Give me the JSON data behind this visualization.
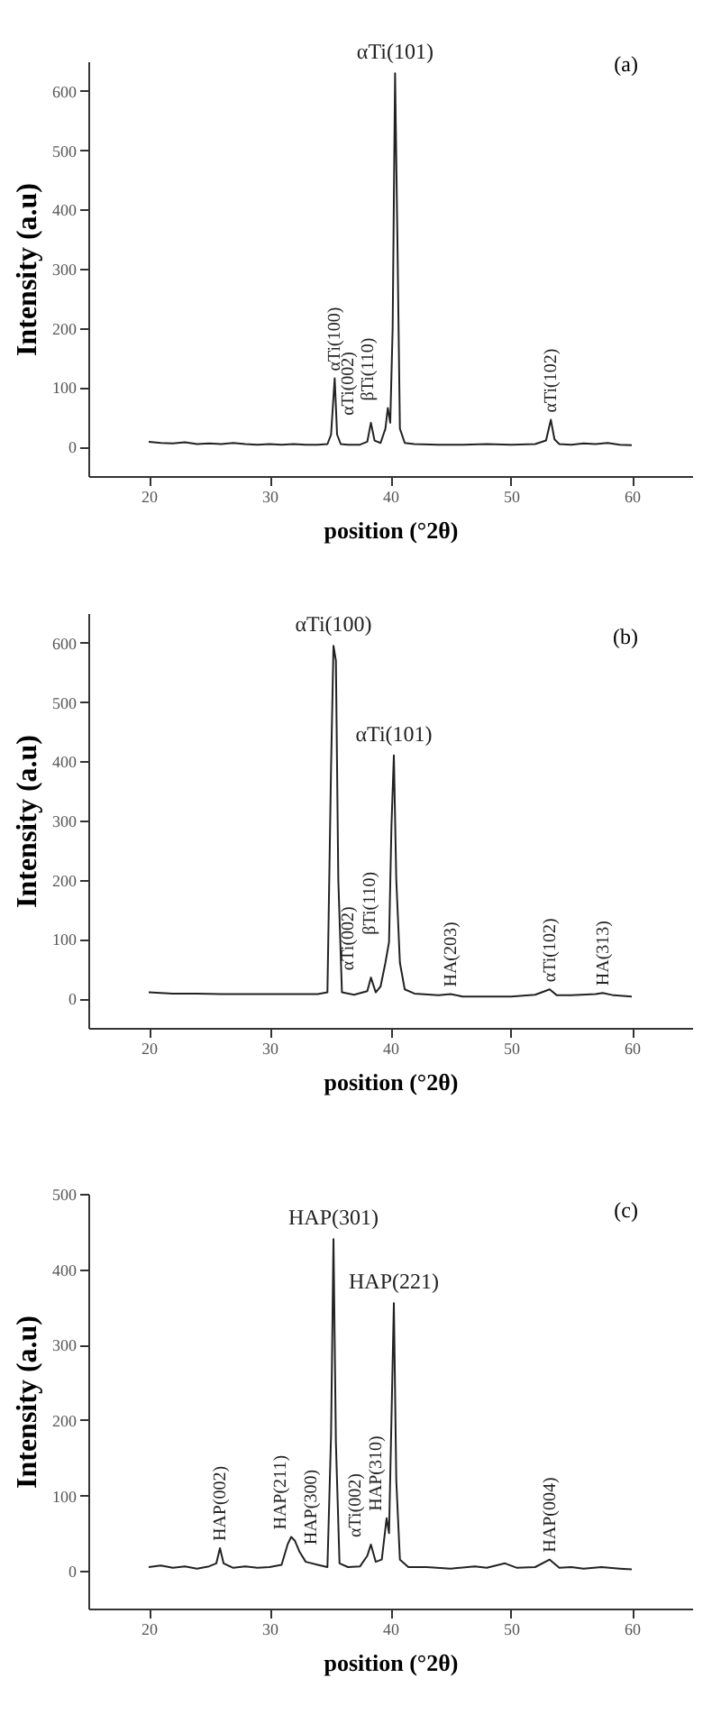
{
  "chart_data": [
    {
      "type": "line",
      "title": "(a)",
      "xlabel": "position (°2θ)",
      "ylabel": "Intensity (a.u)",
      "xlim": [
        15,
        65
      ],
      "ylim": [
        -50,
        650
      ],
      "xticks": [
        20,
        30,
        40,
        50,
        60
      ],
      "yticks": [
        0,
        100,
        200,
        300,
        400,
        500,
        600
      ],
      "x": [
        20,
        21,
        22,
        23,
        24,
        25,
        26,
        27,
        28,
        29,
        30,
        31,
        32,
        33,
        34,
        34.8,
        35.1,
        35.4,
        35.6,
        35.9,
        36.5,
        37.5,
        38.1,
        38.4,
        38.7,
        39.2,
        39.6,
        39.8,
        40.0,
        40.2,
        40.4,
        40.6,
        40.8,
        41.2,
        42,
        44,
        46,
        48,
        50,
        52,
        52.9,
        53.3,
        53.6,
        54,
        55,
        56,
        57,
        58,
        59,
        60
      ],
      "series": [
        {
          "color": "#222222",
          "values": [
            8,
            6,
            5,
            7,
            4,
            5,
            4,
            6,
            4,
            3,
            4,
            3,
            4,
            3,
            3,
            4,
            20,
            115,
            20,
            4,
            3,
            3,
            8,
            40,
            10,
            6,
            30,
            65,
            40,
            200,
            630,
            340,
            30,
            6,
            4,
            3,
            3,
            4,
            3,
            4,
            10,
            45,
            12,
            4,
            3,
            5,
            4,
            6,
            3,
            2
          ]
        }
      ],
      "annotations": [
        {
          "text": "αTi(101)",
          "x": 40.4,
          "y": 630
        },
        {
          "text": "αTi(100)",
          "x": 35.4,
          "y": 115
        },
        {
          "text": "αTi(002)",
          "x": 38.4,
          "y": 40
        },
        {
          "text": "βTi(110)",
          "x": 39.8,
          "y": 65
        },
        {
          "text": "αTi(102)",
          "x": 53.3,
          "y": 45
        }
      ]
    },
    {
      "type": "line",
      "title": "(b)",
      "xlabel": "position (°2θ)",
      "ylabel": "Intensity (a.u)",
      "xlim": [
        15,
        65
      ],
      "ylim": [
        -50,
        650
      ],
      "xticks": [
        20,
        30,
        40,
        50,
        60
      ],
      "yticks": [
        0,
        100,
        200,
        300,
        400,
        500,
        600
      ],
      "x": [
        20,
        22,
        24,
        26,
        28,
        30,
        32,
        34,
        34.8,
        35.1,
        35.3,
        35.5,
        35.7,
        36,
        37,
        38.1,
        38.4,
        38.8,
        39.2,
        39.6,
        39.9,
        40.1,
        40.3,
        40.5,
        40.8,
        41.2,
        42,
        44,
        45,
        46,
        48,
        50,
        52,
        53.2,
        53.8,
        55,
        57,
        57.6,
        58.5,
        60
      ],
      "series": [
        {
          "color": "#222222",
          "values": [
            10,
            8,
            8,
            7,
            7,
            7,
            7,
            7,
            10,
            390,
            595,
            570,
            200,
            10,
            6,
            12,
            35,
            10,
            20,
            60,
            95,
            290,
            410,
            200,
            60,
            15,
            8,
            5,
            7,
            3,
            3,
            3,
            6,
            15,
            5,
            5,
            7,
            9,
            5,
            3
          ]
        }
      ],
      "annotations": [
        {
          "text": "αTi(100)",
          "x": 35.3,
          "y": 595
        },
        {
          "text": "αTi(101)",
          "x": 40.3,
          "y": 410
        },
        {
          "text": "αTi(002)",
          "x": 38.4,
          "y": 35
        },
        {
          "text": "βTi(110)",
          "x": 39.9,
          "y": 95
        },
        {
          "text": "HA(203)",
          "x": 45,
          "y": 7
        },
        {
          "text": "αTi(102)",
          "x": 53.2,
          "y": 15
        },
        {
          "text": "HA(313)",
          "x": 57.6,
          "y": 9
        }
      ]
    },
    {
      "type": "line",
      "title": "(c)",
      "xlabel": "position (°2θ)",
      "ylabel": "Intensity (a.u)",
      "xlim": [
        15,
        65
      ],
      "ylim": [
        -50,
        500
      ],
      "xticks": [
        20,
        30,
        40,
        50,
        60
      ],
      "yticks": [
        0,
        100,
        200,
        300,
        400,
        500
      ],
      "x": [
        20,
        21,
        22,
        23,
        24,
        25,
        25.6,
        25.9,
        26.2,
        27,
        28,
        29,
        30,
        31,
        31.5,
        31.8,
        32.1,
        32.5,
        33,
        34,
        34.8,
        35.1,
        35.3,
        35.5,
        35.8,
        36.5,
        37.5,
        38.1,
        38.4,
        38.8,
        39.3,
        39.7,
        39.9,
        40.1,
        40.3,
        40.5,
        40.8,
        41.5,
        43,
        45,
        47,
        48,
        49.5,
        50.5,
        52,
        53.2,
        54,
        55,
        56,
        57.5,
        59,
        60
      ],
      "series": [
        {
          "color": "#222222",
          "values": [
            5,
            7,
            4,
            6,
            3,
            6,
            10,
            30,
            10,
            4,
            6,
            4,
            5,
            8,
            35,
            45,
            40,
            25,
            12,
            8,
            5,
            180,
            440,
            170,
            10,
            5,
            6,
            20,
            35,
            12,
            15,
            70,
            50,
            200,
            355,
            120,
            15,
            5,
            5,
            3,
            6,
            4,
            10,
            4,
            5,
            15,
            4,
            5,
            3,
            5,
            3,
            2
          ]
        }
      ],
      "annotations": [
        {
          "text": "HAP(301)",
          "x": 35.3,
          "y": 440
        },
        {
          "text": "HAP(221)",
          "x": 40.3,
          "y": 355
        },
        {
          "text": "HAP(002)",
          "x": 25.9,
          "y": 30
        },
        {
          "text": "HAP(211)",
          "x": 31.8,
          "y": 45
        },
        {
          "text": "HAP(300)",
          "x": 32.5,
          "y": 25
        },
        {
          "text": "αTi(002)",
          "x": 38.4,
          "y": 35
        },
        {
          "text": "HAP(310)",
          "x": 39.7,
          "y": 70
        },
        {
          "text": "HAP(004)",
          "x": 53.2,
          "y": 15
        }
      ]
    }
  ]
}
